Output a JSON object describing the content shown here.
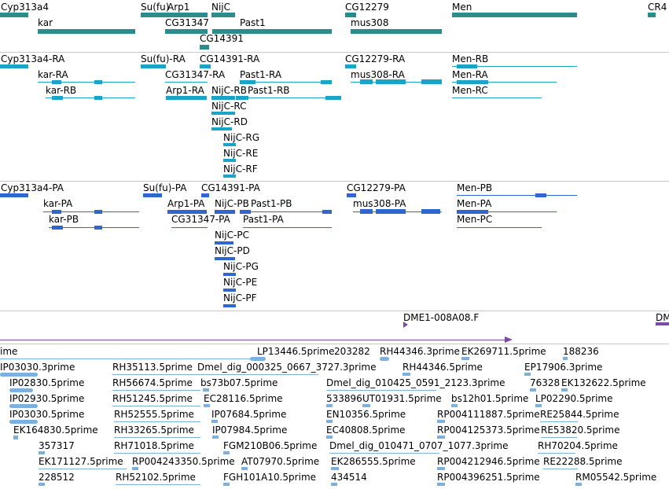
{
  "colors": {
    "gene": "#2a8c8c",
    "rna": "#1aa5c8",
    "protein": "#2f66d0",
    "cdna": "#7db0dc",
    "clone": "#7a4aa8",
    "separator": "#c8c8c8"
  },
  "tracks": {
    "genes": [
      "Cyp313a4",
      "kar",
      "Su(fu)",
      "Arp1",
      "CG31347",
      "NijC",
      "CG14391",
      "Past1",
      "CG12279",
      "mus308",
      "Men",
      "CR4"
    ],
    "transcripts": [
      "Cyp313a4-RA",
      "kar-RA",
      "kar-RB",
      "Su(fu)-RA",
      "CG31347-RA",
      "Arp1-RA",
      "CG14391-RA",
      "NijC-RB",
      "NijC-RC",
      "NijC-RD",
      "NijC-RG",
      "NijC-RE",
      "NijC-RF",
      "Past1-RA",
      "Past1-RB",
      "CG12279-RA",
      "mus308-RA",
      "Men-RB",
      "Men-RA",
      "Men-RC"
    ],
    "proteins": [
      "Cyp313a4-PA",
      "kar-PA",
      "kar-PB",
      "Su(fu)-PA",
      "Arp1-PA",
      "CG31347-PA",
      "CG14391-PA",
      "NijC-PB",
      "NijC-PC",
      "NijC-PD",
      "NijC-PG",
      "NijC-PE",
      "NijC-PF",
      "Past1-PB",
      "Past1-PA",
      "CG12279-PA",
      "mus308-PA",
      "Men-PB",
      "Men-PA",
      "Men-PC"
    ],
    "clones": [
      "DME1-008A08.F",
      "DM"
    ],
    "cdnas": [
      "ime",
      "LP13446.5prime",
      "203282",
      "RH44346.3prime",
      "EK269711.5prime",
      "188236",
      "IP03030.3prime",
      "RH35113.5prime",
      "Dmel_dig_000325_0667_3727.3prime",
      "RH44346.5prime",
      "EP17906.3prime",
      "IP02830.5prime",
      "RH56674.5prime",
      "bs73b07.5prime",
      "Dmel_dig_010425_0591_2123.3prime",
      "76328",
      "EK132622.5prime",
      "IP02930.5prime",
      "RH51245.5prime",
      "EC28116.5prime",
      "533896",
      "UT01931.5prime",
      "bs12h01.5prime",
      "LP02290.5prime",
      "IP03030.5prime",
      "RH52555.5prime",
      "IP07684.5prime",
      "EN10356.5prime",
      "RP004111887.5prime",
      "RE25844.5prime",
      "EK164830.5prime",
      "RH33265.5prime",
      "IP07984.5prime",
      "EC40808.5prime",
      "RP004125373.5prime",
      "RE53820.5prime",
      "357317",
      "RH71018.5prime",
      "FGM210B06.5prime",
      "Dmel_dig_010471_0707_1077.3prime",
      "RH70204.5prime",
      "EK171127.5prime",
      "RP004243350.5prime",
      "AT07970.5prime",
      "EK286555.5prime",
      "RP004212946.5prime",
      "RE22288.5prime",
      "228512",
      "RH52102.5prime",
      "FGH101A10.5prime",
      "434514",
      "RP004396251.5prime",
      "RM05542.5prime"
    ]
  }
}
